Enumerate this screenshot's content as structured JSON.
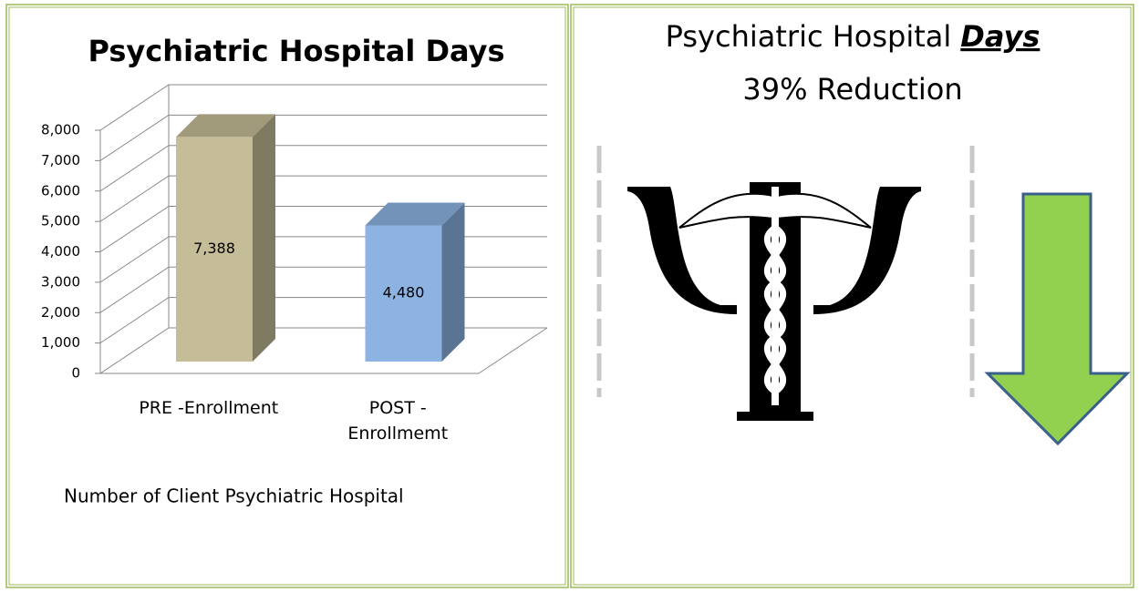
{
  "chart_data": {
    "type": "bar3d",
    "title": "Psychiatric Hospital Days",
    "categories": [
      "PRE -Enrollment",
      "POST - Enrollmemt"
    ],
    "values": [
      7388,
      4480
    ],
    "value_labels": [
      "7,388",
      "4,480"
    ],
    "colors": [
      "#c4bd97",
      "#8db3e2"
    ],
    "ylim": [
      0,
      8000
    ],
    "yticks": [
      0,
      {
        "value": 1000,
        "label": "1,000"
      },
      {
        "value": 2000,
        "label": "2,000"
      },
      {
        "value": 3000,
        "label": "3,000"
      },
      {
        "value": 4000,
        "label": "4,000"
      },
      {
        "value": 5000,
        "label": "5,000"
      },
      {
        "value": 6000,
        "label": "6,000"
      },
      {
        "value": 7000,
        "label": "7,000"
      },
      {
        "value": 8000,
        "label": "8,000"
      }
    ],
    "grid": true,
    "caption": "Number of Client Psychiatric Hospital"
  },
  "right_panel": {
    "title": "Psychiatric Hospital",
    "title_emphasis": "Days",
    "subtitle": "39% Reduction"
  }
}
